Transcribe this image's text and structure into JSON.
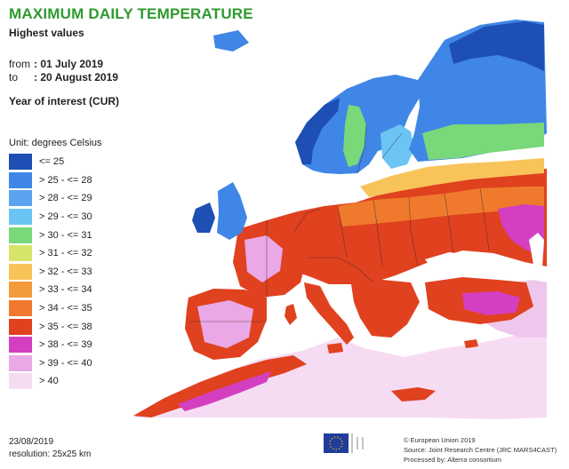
{
  "header": {
    "title": "MAXIMUM DAILY TEMPERATURE",
    "subtitle": "Highest values",
    "from_label": "from",
    "from_value": ": 01 July 2019",
    "to_label": "to",
    "to_value": ": 20 August 2019",
    "year_of_interest": "Year of interest (CUR)"
  },
  "legend": {
    "title": "Unit: degrees Celsius",
    "classes": [
      {
        "label": "<= 25",
        "color": "#1e4fb4"
      },
      {
        "label": "> 25 - <= 28",
        "color": "#3f86e6"
      },
      {
        "label": "> 28 - <= 29",
        "color": "#5aa4ef"
      },
      {
        "label": "> 29 - <= 30",
        "color": "#6cc4f4"
      },
      {
        "label": "> 30 - <= 31",
        "color": "#79d87a"
      },
      {
        "label": "> 31 - <= 32",
        "color": "#d7e46a"
      },
      {
        "label": "> 32 - <= 33",
        "color": "#f8c45a"
      },
      {
        "label": "> 33 - <= 34",
        "color": "#f39a3c"
      },
      {
        "label": "> 34 - <= 35",
        "color": "#ef7a2d"
      },
      {
        "label": "> 35 - <= 38",
        "color": "#e0411f"
      },
      {
        "label": "> 38 - <= 39",
        "color": "#d43fc1"
      },
      {
        "label": "> 39 - <= 40",
        "color": "#eaa8e6"
      },
      {
        "label": "> 40",
        "color": "#f6dcf3"
      }
    ]
  },
  "footer": {
    "date": "23/08/2019",
    "resolution": "resolution: 25x25 km",
    "credit_1": "© European Union 2019",
    "credit_2": "Source: Joint Research Centre (JRC MARS4CAST)",
    "credit_3": "Processed by: Alterra consortium"
  },
  "colors": {
    "title_green": "#2e9a2e",
    "land_no_data": "#f6dcf3",
    "country_border": "#3a2a2a",
    "sea": "#ffffff"
  }
}
